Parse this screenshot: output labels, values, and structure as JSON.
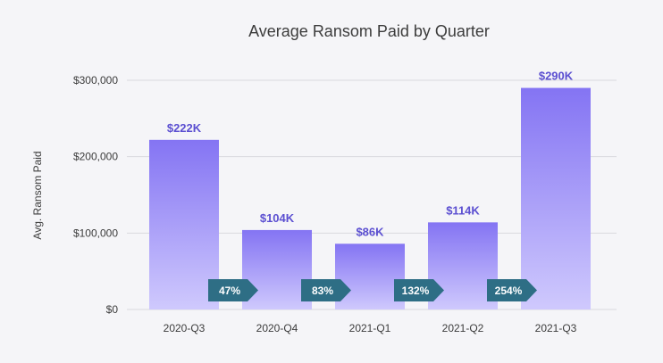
{
  "colors": {
    "background": "#f5f5f8",
    "bar_top": "#8474f3",
    "bar_bottom": "#cfc9fd",
    "data_label": "#5b4fd1",
    "arrow": "#2e6e85",
    "arrow_text": "#ffffff",
    "axis_text": "#3c3c3c",
    "grid": "#d9d9de"
  },
  "chart_data": {
    "type": "bar",
    "title": "Average Ransom Paid by Quarter",
    "xlabel": "",
    "ylabel": "Avg. Ransom Paid",
    "categories": [
      "2020-Q3",
      "2020-Q4",
      "2021-Q1",
      "2021-Q2",
      "2021-Q3"
    ],
    "values": [
      222000,
      104000,
      86000,
      114000,
      290000
    ],
    "data_labels": [
      "$222K",
      "$104K",
      "$86K",
      "$114K",
      "$290K"
    ],
    "ylim": [
      0,
      300000
    ],
    "yticks": [
      0,
      100000,
      200000,
      300000
    ],
    "ytick_labels": [
      "$0",
      "$100,000",
      "$200,000",
      "$300,000"
    ],
    "grid": true,
    "change_annotations": [
      "47%",
      "83%",
      "132%",
      "254%"
    ]
  }
}
